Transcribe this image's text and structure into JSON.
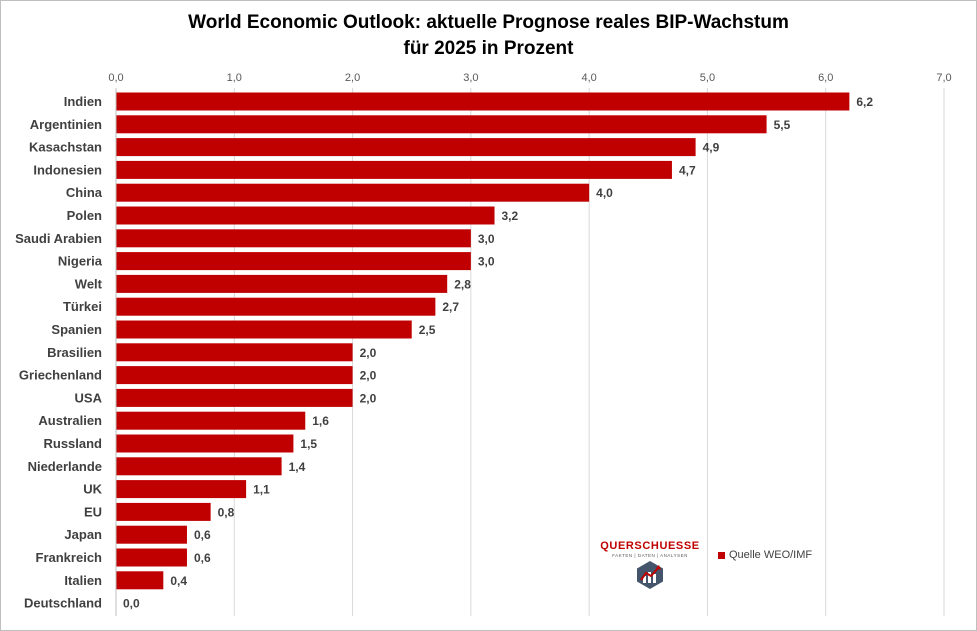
{
  "title_lines": [
    "World Economic Outlook: aktuelle Prognose reales BIP-Wachstum",
    "für 2025 in Prozent"
  ],
  "colors": {
    "bar": "#c00000",
    "grid": "#d9d9d9",
    "axis_text": "#595959",
    "label_text": "#404040"
  },
  "logo": {
    "name": "QUERSCHUESSE",
    "tagline": "FAKTEN | DATEN | ANALYSEN",
    "icon": "chart-bars-logo-icon"
  },
  "chart_data": {
    "type": "bar",
    "orientation": "horizontal",
    "title": "World Economic Outlook: aktuelle Prognose reales BIP-Wachstum für 2025 in Prozent",
    "categories": [
      "Indien",
      "Argentinien",
      "Kasachstan",
      "Indonesien",
      "China",
      "Polen",
      "Saudi Arabien",
      "Nigeria",
      "Welt",
      "Türkei",
      "Spanien",
      "Brasilien",
      "Griechenland",
      "USA",
      "Australien",
      "Russland",
      "Niederlande",
      "UK",
      "EU",
      "Japan",
      "Frankreich",
      "Italien",
      "Deutschland"
    ],
    "series": [
      {
        "name": "Quelle WEO/IMF",
        "values": [
          6.2,
          5.5,
          4.9,
          4.7,
          4.0,
          3.2,
          3.0,
          3.0,
          2.8,
          2.7,
          2.5,
          2.0,
          2.0,
          2.0,
          1.6,
          1.5,
          1.4,
          1.1,
          0.8,
          0.6,
          0.6,
          0.4,
          0.0
        ],
        "value_labels": [
          "6,2",
          "5,5",
          "4,9",
          "4,7",
          "4,0",
          "3,2",
          "3,0",
          "3,0",
          "2,8",
          "2,7",
          "2,5",
          "2,0",
          "2,0",
          "2,0",
          "1,6",
          "1,5",
          "1,4",
          "1,1",
          "0,8",
          "0,6",
          "0,6",
          "0,4",
          "0,0"
        ]
      }
    ],
    "xlim": [
      0,
      7
    ],
    "ticks": [
      0,
      1,
      2,
      3,
      4,
      5,
      6,
      7
    ],
    "tick_labels": [
      "0,0",
      "1,0",
      "2,0",
      "3,0",
      "4,0",
      "5,0",
      "6,0",
      "7,0"
    ],
    "xaxis_position": "top",
    "grid": true,
    "legend": {
      "position": "bottom-right",
      "entries": [
        "Quelle WEO/IMF"
      ]
    }
  }
}
